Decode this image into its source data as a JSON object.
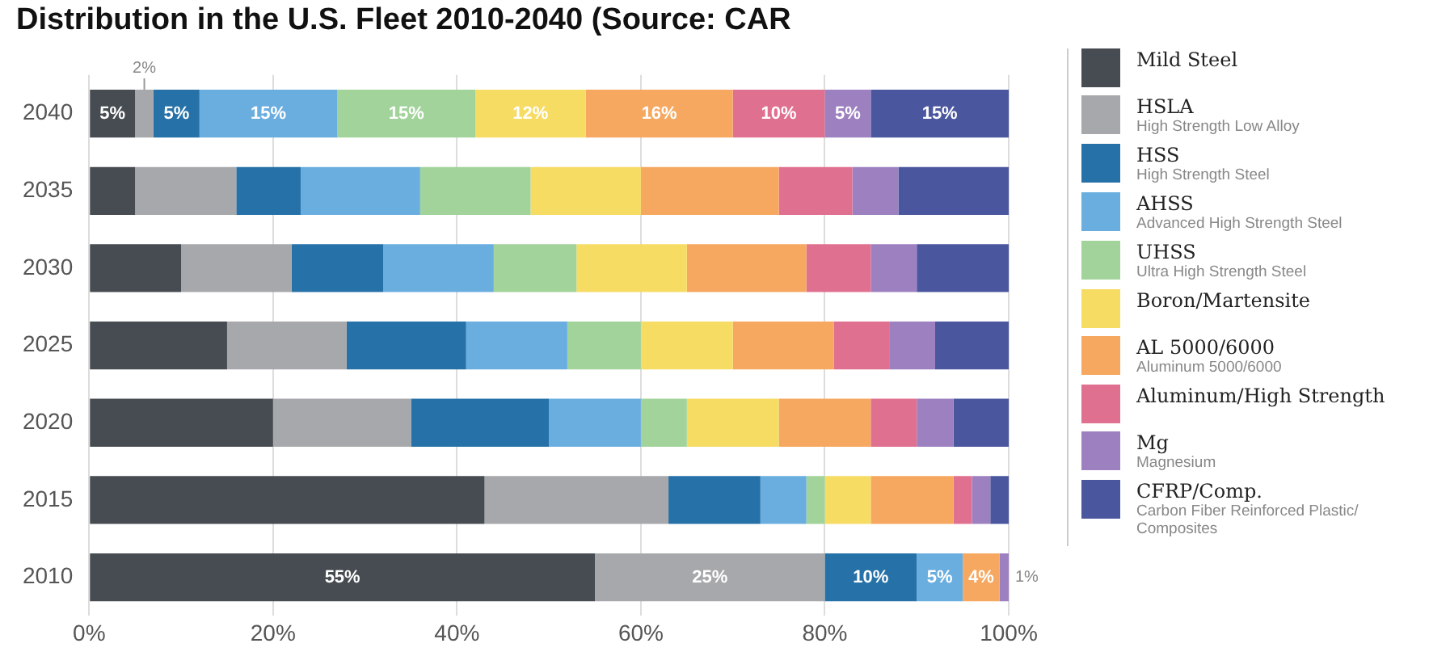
{
  "chart_data": {
    "type": "bar",
    "orientation": "horizontal",
    "stacked": true,
    "title": "Distribution in the U.S. Fleet 2010-2040 (Source: CAR",
    "categories": [
      "2040",
      "2035",
      "2030",
      "2025",
      "2020",
      "2015",
      "2010"
    ],
    "xlim": [
      0,
      100
    ],
    "xticks": [
      {
        "value": 0,
        "label": "0%"
      },
      {
        "value": 20,
        "label": "20%"
      },
      {
        "value": 40,
        "label": "40%"
      },
      {
        "value": 60,
        "label": "60%"
      },
      {
        "value": 80,
        "label": "80%"
      },
      {
        "value": 100,
        "label": "100%"
      }
    ],
    "grid": "x",
    "legend": "right",
    "series": [
      {
        "name": "Mild Steel",
        "color": "#474c52",
        "values": [
          5,
          5,
          10,
          15,
          20,
          43,
          55
        ],
        "value_labels": [
          "5%",
          null,
          null,
          null,
          null,
          null,
          "55%"
        ]
      },
      {
        "name": "HSLA\nHigh Strength Low Alloy",
        "color": "#a7a8ab",
        "values": [
          2,
          11,
          12,
          13,
          15,
          20,
          25
        ],
        "value_labels": [
          "2%",
          null,
          null,
          null,
          null,
          null,
          "25%"
        ]
      },
      {
        "name": "HSS\nHigh Strength Steel",
        "color": "#2672a8",
        "values": [
          5,
          7,
          10,
          13,
          15,
          10,
          10
        ],
        "value_labels": [
          "5%",
          null,
          null,
          null,
          null,
          null,
          "10%"
        ]
      },
      {
        "name": "AHSS\nAdvanced High Strength Steel",
        "color": "#6aaee0",
        "values": [
          15,
          13,
          12,
          11,
          10,
          5,
          5
        ],
        "value_labels": [
          "15%",
          null,
          null,
          null,
          null,
          null,
          "5%"
        ]
      },
      {
        "name": "UHSS\nUltra High Strength Steel",
        "color": "#a1d39a",
        "values": [
          15,
          12,
          9,
          8,
          5,
          2,
          0
        ],
        "value_labels": [
          "15%",
          null,
          null,
          null,
          null,
          null,
          null
        ]
      },
      {
        "name": "Boron/Martensite",
        "color": "#f7dc63",
        "values": [
          12,
          12,
          12,
          10,
          10,
          5,
          0
        ],
        "value_labels": [
          "12%",
          null,
          null,
          null,
          null,
          null,
          null
        ]
      },
      {
        "name": "AL 5000/6000\nAluminum 5000/6000",
        "color": "#f6a860",
        "values": [
          16,
          15,
          13,
          11,
          10,
          9,
          4
        ],
        "value_labels": [
          "16%",
          null,
          null,
          null,
          null,
          null,
          "4%"
        ]
      },
      {
        "name": "Aluminum/High Strength",
        "color": "#e07090",
        "values": [
          10,
          8,
          7,
          6,
          5,
          2,
          0
        ],
        "value_labels": [
          "10%",
          null,
          null,
          null,
          null,
          null,
          null
        ]
      },
      {
        "name": "Mg\nMagnesium",
        "color": "#9d80c0",
        "values": [
          5,
          5,
          5,
          5,
          4,
          2,
          1
        ],
        "value_labels": [
          "5%",
          null,
          null,
          null,
          null,
          null,
          "1%"
        ]
      },
      {
        "name": "CFRP/Comp.\nCarbon Fiber Reinforced Plastic/ Composites",
        "color": "#4a569e",
        "values": [
          15,
          12,
          10,
          8,
          6,
          2,
          0
        ],
        "value_labels": [
          "15%",
          null,
          null,
          null,
          null,
          null,
          null
        ]
      }
    ]
  }
}
